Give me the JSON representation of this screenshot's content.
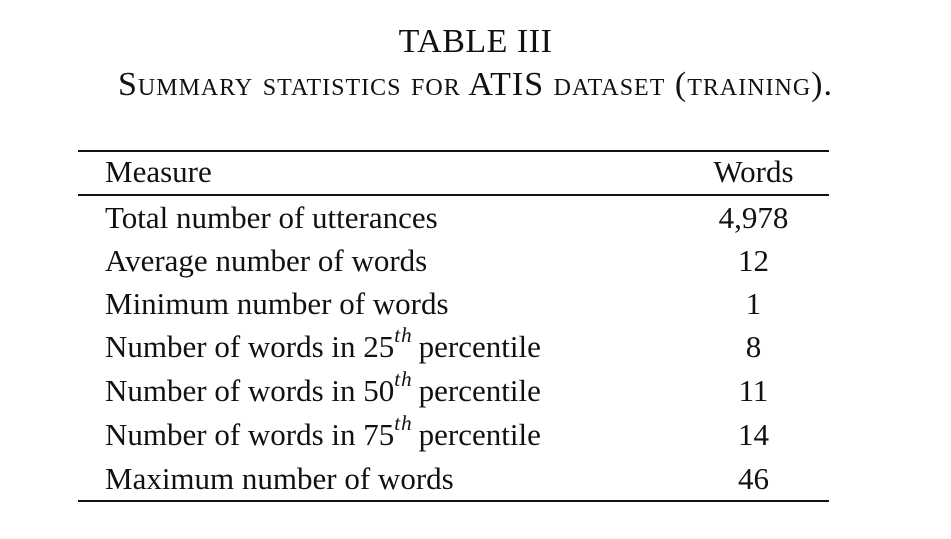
{
  "table_label": "TABLE III",
  "caption": "Summary statistics for ATIS dataset (training).",
  "header": {
    "measure": "Measure",
    "words": "Words"
  },
  "rows": [
    {
      "measure": "Total number of utterances",
      "value": "4,978"
    },
    {
      "measure": "Average number of words",
      "value": "12"
    },
    {
      "measure": "Minimum number of words",
      "value": "1"
    },
    {
      "measure_prefix": "Number of words in 25",
      "measure_sup": "th",
      "measure_suffix": "percentile",
      "value": "8"
    },
    {
      "measure_prefix": "Number of words in 50",
      "measure_sup": "th",
      "measure_suffix": "percentile",
      "value": "11"
    },
    {
      "measure_prefix": "Number of words in 75",
      "measure_sup": "th",
      "measure_suffix": "percentile",
      "value": "14"
    },
    {
      "measure": "Maximum number of words",
      "value": "46"
    }
  ]
}
